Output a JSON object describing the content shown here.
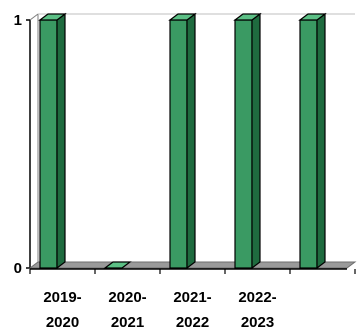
{
  "chart_data": {
    "type": "bar",
    "style": "3d-column",
    "categories": [
      [
        "2019-",
        "2020"
      ],
      [
        "2020-",
        "2021"
      ],
      [
        "2021-",
        "2022"
      ],
      [
        "2022-",
        "2023"
      ],
      [
        "",
        ""
      ]
    ],
    "values": [
      1,
      0,
      1,
      1,
      1
    ],
    "ylim": [
      0,
      1
    ],
    "yticks": [
      "0",
      "1"
    ],
    "title": "",
    "xlabel": "",
    "ylabel": "",
    "grid": false,
    "legend": "none",
    "colors": {
      "bar_front": "#3a9a63",
      "bar_side": "#1f6b3f",
      "bar_top": "#5cbf85",
      "bar_outline": "#000000",
      "axis": "#7f7f7f",
      "axis_dark": "#000000",
      "floor": "#6e6e6e"
    }
  }
}
